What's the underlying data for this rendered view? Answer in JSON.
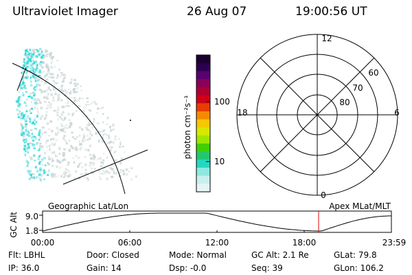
{
  "header": {
    "instrument": "Ultraviolet Imager",
    "date": "26 Aug 07",
    "time": "19:00:56 UT"
  },
  "colorbar": {
    "unit_label": "photon cm⁻²s⁻¹",
    "ticks": [
      "100",
      "10"
    ],
    "colors": [
      "#1a0030",
      "#2a0050",
      "#5a0070",
      "#8a0058",
      "#b00030",
      "#d00018",
      "#e83c00",
      "#f58a00",
      "#f5c800",
      "#d8e800",
      "#9ee800",
      "#40d000",
      "#22c870",
      "#22d8c0",
      "#8ee8e0",
      "#c8f0ee",
      "#e6f4f4"
    ]
  },
  "polar": {
    "mlt_labels": [
      "12",
      "6",
      "0",
      "18"
    ],
    "lat_labels": [
      "60",
      "70",
      "80"
    ]
  },
  "timeline": {
    "left_title": "Geographic Lat/Lon",
    "right_title": "Apex  MLat/MLT",
    "y_axis_label": "GC Alt",
    "y_ticks": [
      "9.0",
      "1.8"
    ],
    "x_ticks": [
      "00:00",
      "06:00",
      "12:00",
      "18:00",
      "23:59"
    ],
    "current_marker_color": "#e00000"
  },
  "info": {
    "row1": [
      "Flt: LBHL",
      "Door: Closed",
      "Mode: Normal",
      "GC Alt: 2.1 Re",
      "GLat:  79.8"
    ],
    "row2": [
      "IP: 36.0",
      "Gain: 14",
      "Dsp:    -0.0",
      "Seq: 39",
      "GLon: 106.2"
    ]
  },
  "colors": {
    "aurora_cyan": "#22d8d8",
    "aurora_gray": "#c8d4d4"
  }
}
